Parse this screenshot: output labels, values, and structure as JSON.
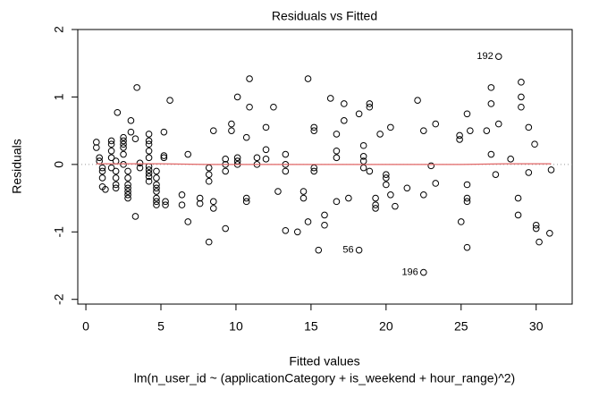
{
  "chart_data": {
    "type": "scatter",
    "title": "Residuals vs Fitted",
    "x_label": "Fitted values",
    "y_label": "Residuals",
    "subtitle": "lm(n_user_id ~ (applicationCategory + is_weekend + hour_range)^2)",
    "xlim": [
      -0.54,
      32.4
    ],
    "ylim": [
      -2.07,
      2.0
    ],
    "xticks": [
      0,
      5,
      10,
      15,
      20,
      25,
      30
    ],
    "yticks": [
      -2,
      -1,
      0,
      1,
      2
    ],
    "zero_line": true,
    "series": [
      {
        "name": "Residuals",
        "color": "#000000",
        "x": [
          0.7,
          0.7,
          0.9,
          0.9,
          1.1,
          1.1,
          1.1,
          1.1,
          1.3,
          1.7,
          1.7,
          1.7,
          1.7,
          1.7,
          2.0,
          2.0,
          2.0,
          2.0,
          2.0,
          2.1,
          2.5,
          2.5,
          2.5,
          2.5,
          2.5,
          2.5,
          2.8,
          2.8,
          2.8,
          2.8,
          2.8,
          2.8,
          2.8,
          3.0,
          3.0,
          3.3,
          3.3,
          3.4,
          3.6,
          3.6,
          4.2,
          4.2,
          4.2,
          4.2,
          4.2,
          4.2,
          4.2,
          4.2,
          4.2,
          4.2,
          4.7,
          4.7,
          4.7,
          4.7,
          4.7,
          4.7,
          4.7,
          4.7,
          5.2,
          5.2,
          5.2,
          5.3,
          5.3,
          5.6,
          6.4,
          6.4,
          6.8,
          6.8,
          7.6,
          7.6,
          8.2,
          8.2,
          8.2,
          8.2,
          8.5,
          8.5,
          8.5,
          9.3,
          9.3,
          9.3,
          9.3,
          9.7,
          9.7,
          10.1,
          10.1,
          10.1,
          10.1,
          10.7,
          10.7,
          10.7,
          10.9,
          10.9,
          11.4,
          11.4,
          12.0,
          12.0,
          12.0,
          12.5,
          12.8,
          13.3,
          13.3,
          13.3,
          13.3,
          14.1,
          14.5,
          14.5,
          14.8,
          14.8,
          15.2,
          15.2,
          15.2,
          15.2,
          15.5,
          15.9,
          15.9,
          16.3,
          16.7,
          16.7,
          16.7,
          16.7,
          17.2,
          17.2,
          17.5,
          18.2,
          18.2,
          18.5,
          18.5,
          18.5,
          18.5,
          18.9,
          18.9,
          18.9,
          19.3,
          19.3,
          19.3,
          19.6,
          20.0,
          20.0,
          20.0,
          20.3,
          20.3,
          20.6,
          21.4,
          22.1,
          22.5,
          22.5,
          22.5,
          23.0,
          23.3,
          23.3,
          24.9,
          24.9,
          25.0,
          25.4,
          25.4,
          25.4,
          25.4,
          25.4,
          25.6,
          26.7,
          27.0,
          27.0,
          27.0,
          27.3,
          27.5,
          27.5,
          28.3,
          28.8,
          28.8,
          29.0,
          29.0,
          29.0,
          29.5,
          29.5,
          29.9,
          30.0,
          30.0,
          30.2,
          30.9,
          31.0
        ],
        "values": [
          0.33,
          0.25,
          0.1,
          0.05,
          -0.05,
          -0.1,
          -0.2,
          -0.33,
          -0.37,
          0.35,
          0.3,
          0.2,
          0.1,
          -0.05,
          0.05,
          -0.1,
          -0.2,
          -0.3,
          -0.35,
          0.77,
          0.4,
          0.35,
          0.3,
          0.25,
          0.15,
          0.0,
          -0.1,
          -0.2,
          -0.3,
          -0.35,
          -0.4,
          -0.45,
          -0.5,
          0.65,
          0.48,
          0.38,
          -0.77,
          1.14,
          0.02,
          -0.05,
          0.45,
          0.35,
          0.3,
          0.2,
          0.1,
          -0.03,
          -0.08,
          -0.13,
          -0.18,
          -0.25,
          -0.3,
          -0.35,
          -0.4,
          -0.5,
          -0.55,
          -0.6,
          -0.1,
          -0.2,
          0.48,
          0.13,
          0.1,
          -0.55,
          -0.6,
          0.95,
          -0.45,
          -0.6,
          -0.85,
          0.15,
          -0.5,
          -0.58,
          -0.05,
          -0.15,
          -0.25,
          -1.15,
          0.5,
          -0.55,
          -0.65,
          -0.95,
          0.0,
          0.08,
          -0.1,
          0.6,
          0.5,
          1.0,
          0.1,
          0.05,
          0.0,
          0.4,
          -0.5,
          -0.55,
          1.27,
          0.85,
          0.1,
          0.0,
          0.55,
          0.22,
          0.08,
          0.85,
          -0.4,
          -0.98,
          0.15,
          0.0,
          -0.1,
          -1.0,
          -0.4,
          -0.5,
          1.27,
          -0.85,
          -0.05,
          -0.1,
          0.55,
          0.5,
          -1.27,
          -0.75,
          -0.9,
          0.98,
          0.45,
          0.2,
          0.1,
          -0.55,
          0.9,
          0.65,
          -0.5,
          -1.27,
          0.75,
          0.28,
          0.12,
          0.05,
          -0.05,
          0.9,
          0.85,
          -0.1,
          -0.5,
          -0.6,
          -0.65,
          0.45,
          -0.15,
          -0.2,
          -0.3,
          0.55,
          -0.45,
          -0.62,
          -0.35,
          0.95,
          0.5,
          -0.45,
          -1.6,
          -0.02,
          0.6,
          -0.28,
          0.43,
          0.37,
          -0.85,
          0.75,
          -0.3,
          -1.23,
          -0.5,
          -0.55,
          0.5,
          0.5,
          1.14,
          0.9,
          0.15,
          -0.15,
          1.6,
          0.6,
          0.08,
          -0.5,
          -0.75,
          1.22,
          1.0,
          0.85,
          0.55,
          -0.12,
          0.3,
          -0.9,
          -0.95,
          -1.15,
          -1.02,
          -0.08
        ]
      }
    ],
    "point_labels": [
      {
        "label": "192",
        "index": 164
      },
      {
        "label": "56",
        "index": 123
      },
      {
        "label": "196",
        "index": 146
      }
    ],
    "smooth": {
      "color": "#e06666",
      "x": [
        0.7,
        3,
        5,
        8,
        10,
        13,
        15,
        18,
        20,
        23,
        25,
        28,
        31
      ],
      "values": [
        0.01,
        0.01,
        0.01,
        0.0,
        0.0,
        0.0,
        0.0,
        0.0,
        0.0,
        0.0,
        0.0,
        0.01,
        0.01
      ]
    }
  }
}
